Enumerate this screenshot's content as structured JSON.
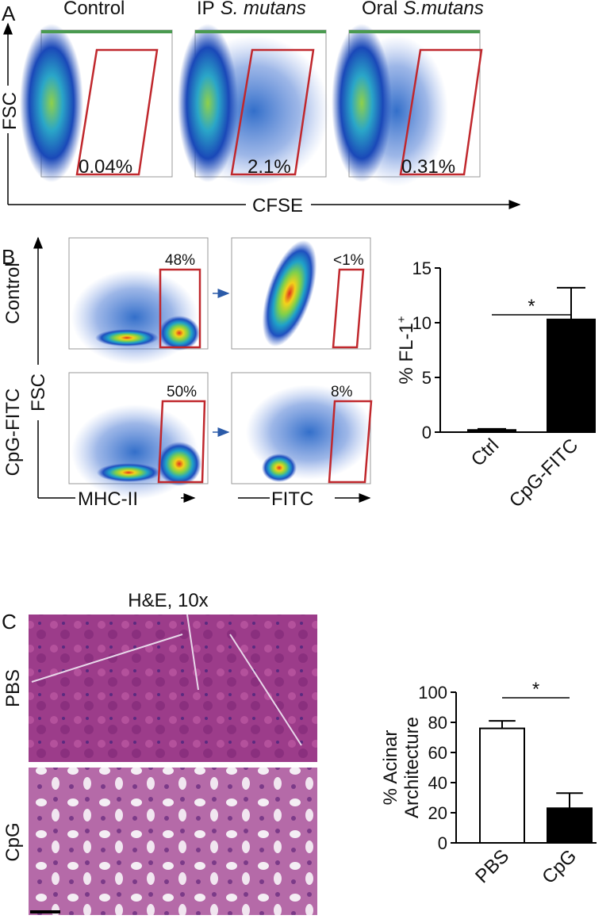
{
  "panels": {
    "A": {
      "label": "A",
      "plots": [
        {
          "title": "Control",
          "gate": "0.04%"
        },
        {
          "title_prefix": "IP",
          "title_species": "S. mutans",
          "gate": "2.1%"
        },
        {
          "title_prefix": "Oral",
          "title_species": "S.mutans",
          "gate": "0.31%"
        }
      ],
      "y_axis": "FSC",
      "x_axis": "CFSE"
    },
    "B": {
      "label": "B",
      "rows": [
        "Control",
        "CpG-FITC"
      ],
      "y_axis": "FSC",
      "x_axes": [
        "MHC-II",
        "FITC"
      ],
      "gates": [
        [
          "48%",
          "<1%"
        ],
        [
          "50%",
          "8%"
        ]
      ]
    },
    "C": {
      "label": "C",
      "title": "H&E, 10x",
      "rows": [
        "PBS",
        "CpG"
      ]
    }
  },
  "chart_data": [
    {
      "type": "bar",
      "ylabel": "% FL-1",
      "ylabel_sup": "+",
      "categories": [
        "Ctrl",
        "CpG-FITC"
      ],
      "values": [
        0.2,
        10.3
      ],
      "errors": [
        0.1,
        2.9
      ],
      "colors": [
        "#000000",
        "#000000"
      ],
      "ylim": [
        0,
        15
      ],
      "yticks": [
        0,
        5,
        10,
        15
      ],
      "annotation": "*"
    },
    {
      "type": "bar",
      "ylabel": [
        "% Acinar",
        "Architecture"
      ],
      "categories": [
        "PBS",
        "CpG"
      ],
      "values": [
        76,
        23
      ],
      "errors": [
        5,
        10
      ],
      "colors": [
        "#ffffff",
        "#000000"
      ],
      "ylim": [
        0,
        100
      ],
      "yticks": [
        0,
        20,
        40,
        60,
        80,
        100
      ],
      "annotation": "*"
    }
  ]
}
